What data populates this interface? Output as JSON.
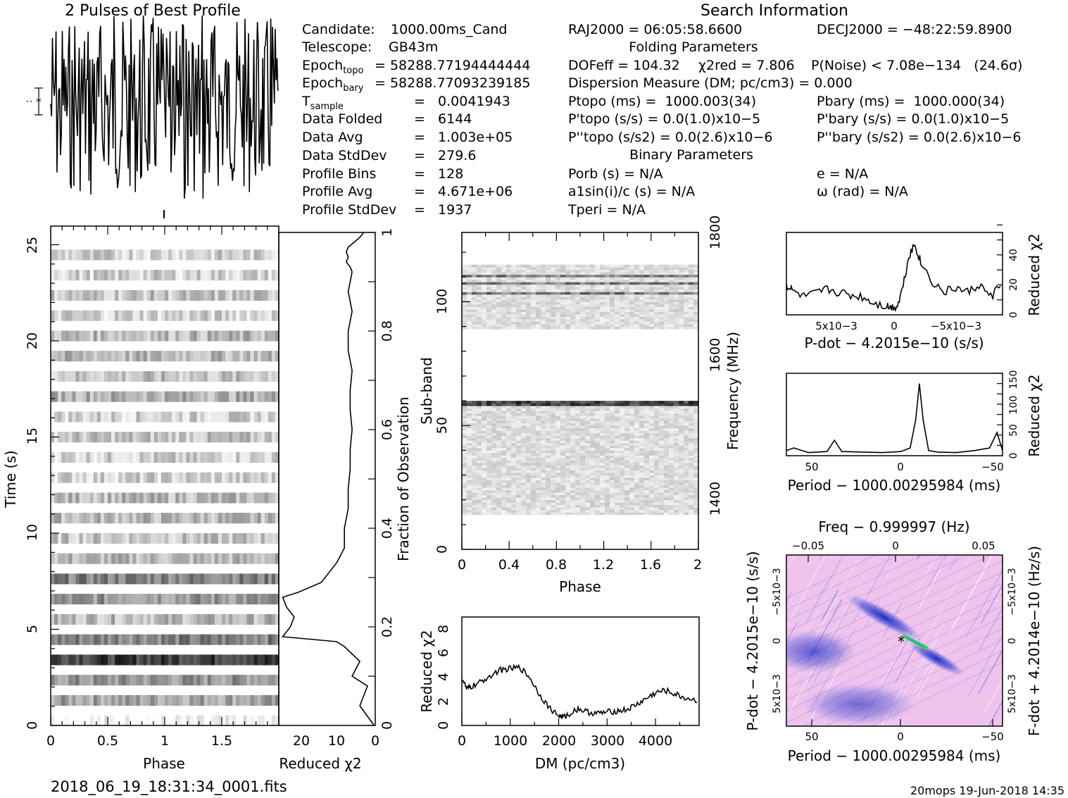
{
  "header": {
    "profile_title": "2 Pulses of Best Profile",
    "search_title": "Search Information",
    "folding_title": "Folding Parameters",
    "binary_title": "Binary Parameters"
  },
  "candidate_info": [
    {
      "label": "Candidate:",
      "value": "1000.00ms_Cand"
    },
    {
      "label": "Telescope:",
      "value": "GB43m"
    },
    {
      "label": "Epoch",
      "sub": "topo",
      "value": "= 58288.77194444444"
    },
    {
      "label": "Epoch",
      "sub": "bary",
      "value": "= 58288.77093239185"
    },
    {
      "label": "T",
      "sub": "sample",
      "value": "=   0.0041943"
    },
    {
      "label": "Data Folded",
      "value": "=   6144"
    },
    {
      "label": "Data Avg",
      "value": "=   1.003e+05"
    },
    {
      "label": "Data StdDev",
      "value": "=   279.6"
    },
    {
      "label": "Profile Bins",
      "value": "=   128"
    },
    {
      "label": "Profile Avg",
      "value": "=   4.671e+06"
    },
    {
      "label": "Profile StdDev",
      "value": "=   1937"
    }
  ],
  "search_info": {
    "ra": "RAJ2000 = 06:05:58.6600",
    "dec": "DECJ2000 = −48:22:59.8900",
    "dof": "DOFeff = 104.32",
    "chi2": "χ2red = 7.806",
    "pnoise": "P(Noise) < 7.08e−134   (24.6σ)",
    "dm": "Dispersion Measure (DM; pc/cm3) = 0.000",
    "ptopo": "Ptopo (ms) =  1000.003(34)",
    "pbary": "Pbary (ms) =  1000.000(34)",
    "pdtopo": "P'topo (s/s) = 0.0(1.0)x10−5",
    "pdbary": "P'bary (s/s) = 0.0(1.0)x10−5",
    "pddtopo": "P''topo (s/s2) = 0.0(2.6)x10−6",
    "pddbary": "P''bary (s/s2) = 0.0(2.6)x10−6",
    "porb": "Porb (s) = N/A",
    "ecc": "e = N/A",
    "a1": "a1sin(i)/c (s) = N/A",
    "omega": "ω (rad) = N/A",
    "tperi": "Tperi = N/A"
  },
  "footer": {
    "filename": "2018_06_19_18:31:34_0001.fits",
    "stamp": "20mops 19-Jun-2018 14:35"
  },
  "colors": {
    "ink": "#000000",
    "grey": "#808080",
    "pdot_blue": "#3040d0",
    "pdot_green": "#40d060",
    "pdot_pink": "#f2c6ee"
  },
  "chart_data": [
    {
      "type": "line",
      "name": "pulse-profile",
      "title": "2 Pulses of Best Profile",
      "xlabel": "",
      "ylabel": "",
      "x_range": [
        0,
        2
      ],
      "note": "two identical 128-bin pulses, noise-like"
    },
    {
      "type": "heatmap",
      "name": "time-phase",
      "xlabel": "Phase",
      "ylabel": "Time (s)",
      "x_range": [
        0,
        2
      ],
      "y_range": [
        0,
        25.8
      ],
      "x_ticks": [
        "0",
        "0.5",
        "1",
        "1.5"
      ],
      "y_ticks": [
        "0",
        "5",
        "10",
        "15",
        "20",
        "25"
      ],
      "row_intensity": [
        0,
        0.2,
        0.4,
        0.3,
        0.45,
        0.6,
        0.85,
        0.7,
        0.55,
        0.4,
        0.3,
        0.5,
        0.45,
        0.5,
        0.55,
        0.35,
        0.3,
        0.45,
        0.25,
        0.3,
        0.3,
        0.2,
        0.3,
        0.3,
        0.2,
        0.25,
        0.2,
        0.3,
        0.25,
        0.25,
        0.2,
        0.3,
        0.35,
        0.2,
        0.25,
        0.25,
        0.3,
        0.35,
        0.3,
        0.35,
        0.2,
        0.3,
        0.25,
        0.3,
        0.2,
        0.3,
        0.2,
        0.3
      ]
    },
    {
      "type": "line",
      "name": "reduced-chi2-vs-time",
      "xlabel": "Reduced χ2",
      "y2label": "Fraction of Observation",
      "x_range": [
        25,
        0
      ],
      "y_range": [
        0,
        1
      ],
      "x_ticks": [
        "20",
        "10",
        "0"
      ],
      "y_ticks": [
        "0",
        "0.2",
        "0.4",
        "0.6",
        "0.8",
        "1"
      ],
      "x": [
        0.3,
        4,
        2,
        6,
        4,
        8,
        10,
        24,
        22,
        21,
        23,
        24,
        20,
        14,
        10,
        8,
        8,
        7,
        7,
        6.5,
        6.5,
        6,
        6.5,
        6.5,
        6,
        7,
        7,
        6.5,
        6,
        6.5,
        7,
        6.5,
        6,
        6.5,
        7.5,
        7,
        7.5,
        7,
        4,
        3
      ],
      "y": [
        0.0,
        0.04,
        0.08,
        0.1,
        0.13,
        0.16,
        0.17,
        0.18,
        0.2,
        0.22,
        0.24,
        0.26,
        0.27,
        0.29,
        0.33,
        0.36,
        0.4,
        0.44,
        0.48,
        0.52,
        0.56,
        0.6,
        0.64,
        0.68,
        0.72,
        0.76,
        0.8,
        0.82,
        0.84,
        0.86,
        0.88,
        0.9,
        0.92,
        0.93,
        0.94,
        0.95,
        0.96,
        0.97,
        0.99,
        1.0
      ]
    },
    {
      "type": "heatmap",
      "name": "subband-phase",
      "xlabel": "Phase",
      "ylabel": "Sub-band",
      "y2label": "Frequency (MHz)",
      "x_range": [
        0,
        2
      ],
      "y_range": [
        0,
        128
      ],
      "x_ticks": [
        "0",
        "0.4",
        "0.8",
        "1.2",
        "1.6",
        "2"
      ],
      "y_ticks": [
        "0",
        "50",
        "100"
      ],
      "y2_ticks": [
        "1400",
        "1600",
        "1800"
      ],
      "bands": [
        [
          14,
          60
        ],
        [
          89,
          115
        ]
      ]
    },
    {
      "type": "line",
      "name": "chi2-vs-dm",
      "xlabel": "DM (pc/cm3)",
      "ylabel": "Reduced χ2",
      "x_range": [
        0,
        4900
      ],
      "y_range": [
        0,
        9
      ],
      "x_ticks": [
        "0",
        "1000",
        "2000",
        "3000",
        "4000"
      ],
      "y_ticks": [
        "0",
        "2",
        "4",
        "6",
        "8"
      ],
      "x": [
        0,
        100,
        200,
        400,
        600,
        800,
        1000,
        1200,
        1400,
        1600,
        1800,
        2000,
        2100,
        2200,
        2400,
        2600,
        2800,
        3000,
        3200,
        3400,
        3600,
        3800,
        4000,
        4200,
        4400,
        4600,
        4900
      ],
      "y": [
        4,
        3,
        3.2,
        3.6,
        4.2,
        4.6,
        4.7,
        4.8,
        4.0,
        2.6,
        1.5,
        0.8,
        0.7,
        0.9,
        1.4,
        1.1,
        1.0,
        1.1,
        1.2,
        1.3,
        1.7,
        2.2,
        2.7,
        2.9,
        2.6,
        2.3,
        2.0
      ]
    },
    {
      "type": "line",
      "name": "chi2-vs-pdot",
      "xlabel": "P-dot − 4.2015e−10 (s/s)",
      "ylabel": "Reduced χ2",
      "x_range": [
        0.0095,
        -0.009
      ],
      "y_range": [
        0,
        55
      ],
      "x_ticks": [
        "5x10−3",
        "0",
        "−5x10−3"
      ],
      "y_ticks": [
        "0",
        "20",
        "40"
      ],
      "x": [
        0.0095,
        0.009,
        0.008,
        0.007,
        0.006,
        0.005,
        0.004,
        0.003,
        0.002,
        0.001,
        0.0005,
        0.0,
        -0.0005,
        -0.001,
        -0.0015,
        -0.002,
        -0.003,
        -0.004,
        -0.005,
        -0.006,
        -0.007,
        -0.008,
        -0.009
      ],
      "y": [
        20,
        16,
        12,
        14,
        17,
        15,
        13,
        12,
        8,
        6,
        5,
        6,
        20,
        40,
        47,
        35,
        22,
        15,
        18,
        15,
        20,
        12,
        22
      ]
    },
    {
      "type": "line",
      "name": "chi2-vs-period",
      "xlabel": "Period − 1000.00295984 (ms)",
      "ylabel": "Reduced χ2",
      "x_range": [
        62,
        -55
      ],
      "y_range": [
        0,
        160
      ],
      "x_ticks": [
        "50",
        "0",
        "−50"
      ],
      "y_ticks": [
        "0",
        "50",
        "100",
        "150"
      ],
      "x": [
        62,
        58,
        50,
        40,
        36,
        32,
        20,
        10,
        0,
        -5,
        -8,
        -10,
        -12,
        -15,
        -20,
        -30,
        -40,
        -48,
        -52,
        -55
      ],
      "y": [
        10,
        15,
        6,
        8,
        30,
        8,
        7,
        6,
        8,
        15,
        70,
        140,
        70,
        10,
        7,
        6,
        10,
        15,
        45,
        10
      ]
    },
    {
      "type": "heatmap",
      "name": "pdot-period-plane",
      "xlabel": "Period − 1000.00295984 (ms)",
      "ylabel": "P-dot − 4.2015e−10 (s/s)",
      "x2label": "Freq − 0.999997 (Hz)",
      "y2label": "F-dot + 4.2014e−10 (Hz/s)",
      "x_range": [
        62,
        -55
      ],
      "y_range": [
        0.01,
        -0.01
      ],
      "x_ticks": [
        "50",
        "0",
        "−50"
      ],
      "x2_ticks": [
        "−0.05",
        "0",
        "0.05"
      ],
      "y_ticks": [
        "5x10−3",
        "0",
        "−5x10−3"
      ],
      "y2_ticks": [
        "5x10−3",
        "0",
        "−5x10−3"
      ]
    }
  ]
}
